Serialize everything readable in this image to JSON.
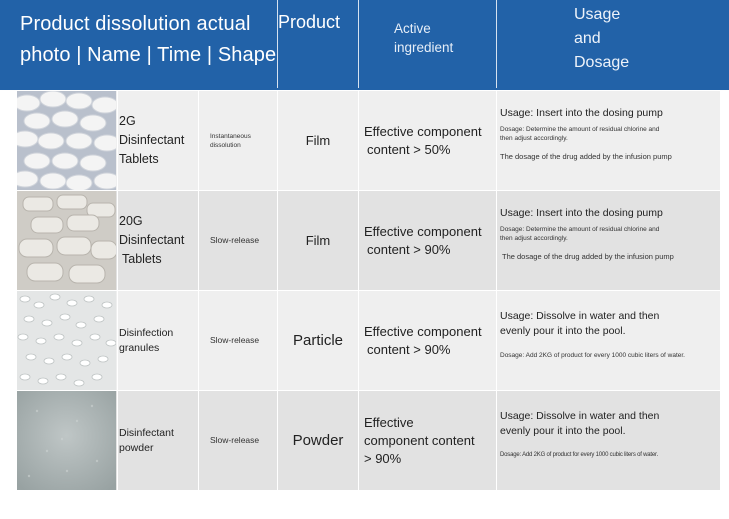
{
  "header": {
    "col1": "Product dissolution actual photo | Name | Time | Shape",
    "col1_line1": "Product dissolution actual",
    "col1_line2": "photo | Name | Time | Shape",
    "col2": "Product",
    "col3_line1": "Active",
    "col3_line2": "ingredient",
    "col4_line1": "Usage",
    "col4_line2": "and",
    "col4_line3": "Dosage"
  },
  "rows": [
    {
      "photo": "white-film-tablets-photo",
      "name_lines": [
        "2G",
        "Disinfectant",
        "Tablets"
      ],
      "time_lines": [
        "Instantaneous",
        "dissolution"
      ],
      "shape": "Film",
      "active_lines": [
        "Effective component",
        "content > 50%"
      ],
      "usage": "Usage: Insert into the dosing pump",
      "dosage_lines": [
        "Dosage: Determine the amount of residual chlorine and",
        "then adjust accordingly."
      ],
      "extra": "The dosage of the drug added by the infusion pump"
    },
    {
      "photo": "stacked-tablets-photo",
      "name_lines": [
        "20G",
        "Disinfectant",
        "Tablets"
      ],
      "time_lines": [
        "Slow-release"
      ],
      "shape": "Film",
      "active_lines": [
        "Effective component",
        "content > 90%"
      ],
      "usage": "Usage: Insert into the dosing pump",
      "dosage_lines": [
        "Dosage: Determine the amount of residual chlorine and",
        "then adjust accordingly."
      ],
      "extra": "The dosage of the drug added by the infusion pump"
    },
    {
      "photo": "white-granules-photo",
      "name_lines": [
        "Disinfection",
        "granules"
      ],
      "time_lines": [
        "Slow-release"
      ],
      "shape": "Particle",
      "active_lines": [
        "Effective component",
        "content > 90%"
      ],
      "usage_lines": [
        "Usage: Dissolve in water and then",
        "evenly pour it into the pool."
      ],
      "dosage": "Dosage: Add 2KG of product for every 1000 cubic liters of water."
    },
    {
      "photo": "gray-powder-photo",
      "name_lines": [
        "Disinfectant",
        "powder"
      ],
      "time_lines": [
        "Slow-release"
      ],
      "shape": "Powder",
      "active_lines": [
        "Effective",
        "component content",
        "> 90%"
      ],
      "usage_lines": [
        "Usage: Dissolve in water and then",
        "evenly pour it into the pool."
      ],
      "dosage": "Dosage: Add 2KG of product for every 1000 cubic liters of water."
    }
  ],
  "colors": {
    "header_bg": "#2262a8",
    "row_odd": "#efefef",
    "row_even": "#e2e2e2"
  }
}
